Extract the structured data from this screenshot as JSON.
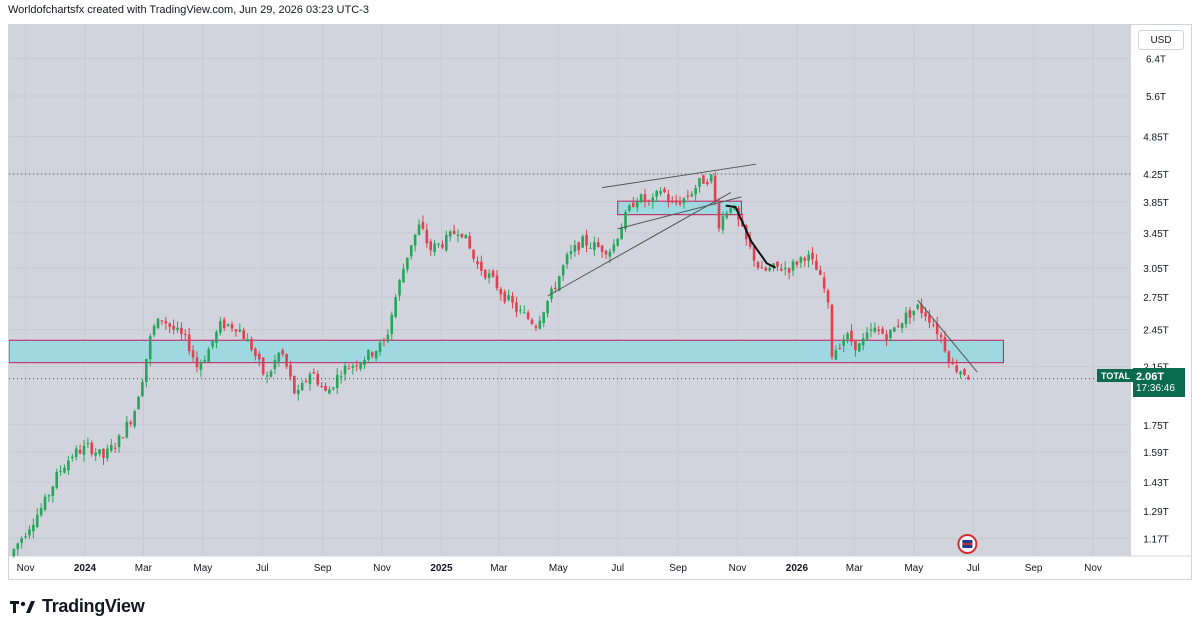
{
  "header": {
    "text": "Worldofchartsfx created with TradingView.com, Jun 29, 2026 03:23 UTC-3"
  },
  "currency": "USD",
  "symbol": "TOTAL",
  "last_price": "2.06T",
  "countdown": "17:36:46",
  "brand": "TradingView",
  "colors": {
    "bg": "#d1d4dc",
    "up": "#26a65b",
    "down": "#e0404f",
    "zone": "#9fd8e0",
    "zone_border": "#c2185b"
  },
  "chart_data": {
    "type": "candlestick",
    "y_scale": "log",
    "y_ticks": [
      "6.4T",
      "5.6T",
      "4.85T",
      "4.25T",
      "3.85T",
      "3.45T",
      "3.05T",
      "2.75T",
      "2.45T",
      "2.15T",
      "1.75T",
      "1.59T",
      "1.43T",
      "1.29T",
      "1.17T"
    ],
    "y_tick_values": [
      6.4,
      5.6,
      4.85,
      4.25,
      3.85,
      3.45,
      3.05,
      2.75,
      2.45,
      2.15,
      1.75,
      1.59,
      1.43,
      1.29,
      1.17
    ],
    "x_ticks": [
      "Nov",
      "2024",
      "Mar",
      "May",
      "Jul",
      "Sep",
      "Nov",
      "2025",
      "Mar",
      "May",
      "Jul",
      "Sep",
      "Nov",
      "2026",
      "Mar",
      "May",
      "Jul",
      "Sep",
      "Nov"
    ],
    "x_tick_dates": [
      "2023-11-01",
      "2024-01-01",
      "2024-03-01",
      "2024-05-01",
      "2024-07-01",
      "2024-09-01",
      "2024-11-01",
      "2025-01-01",
      "2025-03-01",
      "2025-05-01",
      "2025-07-01",
      "2025-09-01",
      "2025-11-01",
      "2026-01-01",
      "2026-03-01",
      "2026-05-01",
      "2026-07-01",
      "2026-09-01",
      "2026-11-01"
    ],
    "x_range": [
      "2023-10-15",
      "2026-12-10"
    ],
    "y_range": [
      1.1,
      7.2
    ],
    "close_path": [
      [
        "2023-10-16",
        1.1
      ],
      [
        "2023-11-01",
        1.2
      ],
      [
        "2023-11-20",
        1.32
      ],
      [
        "2023-12-05",
        1.48
      ],
      [
        "2023-12-20",
        1.58
      ],
      [
        "2024-01-05",
        1.62
      ],
      [
        "2024-01-20",
        1.56
      ],
      [
        "2024-02-05",
        1.66
      ],
      [
        "2024-02-20",
        1.82
      ],
      [
        "2024-03-01",
        2.1
      ],
      [
        "2024-03-10",
        2.45
      ],
      [
        "2024-03-20",
        2.55
      ],
      [
        "2024-04-01",
        2.45
      ],
      [
        "2024-04-15",
        2.35
      ],
      [
        "2024-04-25",
        2.15
      ],
      [
        "2024-05-05",
        2.25
      ],
      [
        "2024-05-20",
        2.5
      ],
      [
        "2024-06-05",
        2.48
      ],
      [
        "2024-06-20",
        2.3
      ],
      [
        "2024-07-05",
        2.05
      ],
      [
        "2024-07-20",
        2.28
      ],
      [
        "2024-08-05",
        1.92
      ],
      [
        "2024-08-20",
        2.12
      ],
      [
        "2024-09-05",
        1.95
      ],
      [
        "2024-09-20",
        2.12
      ],
      [
        "2024-10-05",
        2.18
      ],
      [
        "2024-10-20",
        2.25
      ],
      [
        "2024-11-05",
        2.35
      ],
      [
        "2024-11-15",
        2.75
      ],
      [
        "2024-11-30",
        3.3
      ],
      [
        "2024-12-10",
        3.55
      ],
      [
        "2024-12-20",
        3.25
      ],
      [
        "2025-01-05",
        3.35
      ],
      [
        "2025-01-20",
        3.52
      ],
      [
        "2025-02-05",
        3.1
      ],
      [
        "2025-02-20",
        2.95
      ],
      [
        "2025-03-05",
        2.78
      ],
      [
        "2025-03-20",
        2.62
      ],
      [
        "2025-04-08",
        2.5
      ],
      [
        "2025-04-25",
        2.8
      ],
      [
        "2025-05-10",
        3.15
      ],
      [
        "2025-05-25",
        3.35
      ],
      [
        "2025-06-10",
        3.28
      ],
      [
        "2025-06-25",
        3.25
      ],
      [
        "2025-07-05",
        3.55
      ],
      [
        "2025-07-20",
        3.92
      ],
      [
        "2025-08-05",
        3.82
      ],
      [
        "2025-08-15",
        4.05
      ],
      [
        "2025-08-25",
        3.8
      ],
      [
        "2025-09-10",
        3.92
      ],
      [
        "2025-09-25",
        4.15
      ],
      [
        "2025-10-05",
        4.2
      ],
      [
        "2025-10-12",
        3.55
      ],
      [
        "2025-10-25",
        3.82
      ],
      [
        "2025-11-10",
        3.35
      ],
      [
        "2025-11-25",
        3.0
      ],
      [
        "2025-12-10",
        3.05
      ],
      [
        "2025-12-25",
        3.05
      ],
      [
        "2026-01-10",
        3.2
      ],
      [
        "2026-01-20",
        3.05
      ],
      [
        "2026-02-01",
        2.75
      ],
      [
        "2026-02-06",
        2.25
      ],
      [
        "2026-02-20",
        2.4
      ],
      [
        "2026-03-05",
        2.3
      ],
      [
        "2026-03-20",
        2.45
      ],
      [
        "2026-04-05",
        2.4
      ],
      [
        "2026-04-20",
        2.55
      ],
      [
        "2026-05-05",
        2.65
      ],
      [
        "2026-05-15",
        2.58
      ],
      [
        "2026-05-28",
        2.4
      ],
      [
        "2026-06-10",
        2.15
      ],
      [
        "2026-06-20",
        2.12
      ],
      [
        "2026-06-29",
        2.06
      ]
    ],
    "zones": [
      {
        "from": "2023-10-15",
        "to": "2026-08-01",
        "low": 2.18,
        "high": 2.36
      },
      {
        "from": "2025-07-01",
        "to": "2025-11-05",
        "low": 3.68,
        "high": 3.86
      }
    ],
    "trendlines": [
      {
        "from": [
          "2025-06-15",
          4.05
        ],
        "to": [
          "2025-11-20",
          4.4
        ],
        "color": "#555555"
      },
      {
        "from": [
          "2025-07-01",
          3.5
        ],
        "to": [
          "2025-11-05",
          3.92
        ],
        "color": "#555555"
      },
      {
        "from": [
          "2025-04-20",
          2.76
        ],
        "to": [
          "2025-10-25",
          3.98
        ],
        "color": "#555555"
      },
      {
        "from": [
          "2026-05-05",
          2.72
        ],
        "to": [
          "2026-07-05",
          2.11
        ],
        "color": "#555555"
      }
    ],
    "projection": [
      [
        "2025-10-20",
        3.8
      ],
      [
        "2025-10-30",
        3.78
      ],
      [
        "2025-11-15",
        3.35
      ],
      [
        "2025-12-01",
        3.1
      ],
      [
        "2025-12-10",
        3.05
      ]
    ],
    "dotted_level": 4.25
  }
}
